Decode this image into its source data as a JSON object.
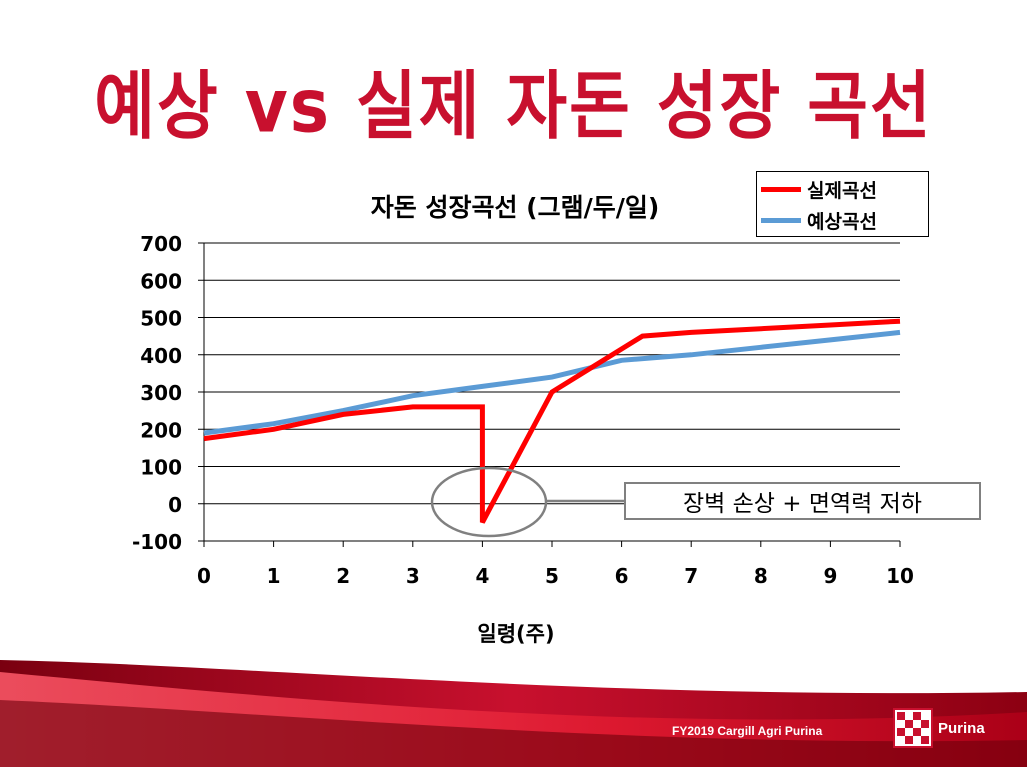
{
  "slide": {
    "title": "예상 vs 실제 자돈 성장 곡선",
    "footer": "FY2019 Cargill Agri Purina",
    "brand": "Purina"
  },
  "colors": {
    "accent_red": "#c8102e",
    "actual_series": "#ff0000",
    "expected_series": "#5b9bd5",
    "annotation_gray": "#808080"
  },
  "annotation": {
    "text": "장벽 손상 + 면역력 저하"
  },
  "chart_data": {
    "type": "line",
    "title": "자돈 성장곡선 (그램/두/일)",
    "xlabel": "일령(주)",
    "ylabel": "",
    "xlim": [
      0,
      10
    ],
    "ylim": [
      -100,
      700
    ],
    "x_ticks": [
      0,
      1,
      2,
      3,
      4,
      5,
      6,
      7,
      8,
      9,
      10
    ],
    "y_ticks": [
      -100,
      0,
      100,
      200,
      300,
      400,
      500,
      600,
      700
    ],
    "grid": "horizontal",
    "legend_position": "top-right",
    "series": [
      {
        "name": "실제곡선",
        "color": "#ff0000",
        "x": [
          0,
          1,
          2,
          3,
          4,
          4,
          5,
          6.3,
          7,
          8,
          9,
          10
        ],
        "y": [
          175,
          200,
          240,
          260,
          260,
          -50,
          300,
          450,
          460,
          470,
          480,
          490
        ]
      },
      {
        "name": "예상곡선",
        "color": "#5b9bd5",
        "x": [
          0,
          1,
          2,
          3,
          4,
          5,
          6,
          7,
          8,
          9,
          10
        ],
        "y": [
          190,
          215,
          250,
          290,
          315,
          340,
          385,
          400,
          420,
          440,
          460
        ]
      }
    ]
  }
}
